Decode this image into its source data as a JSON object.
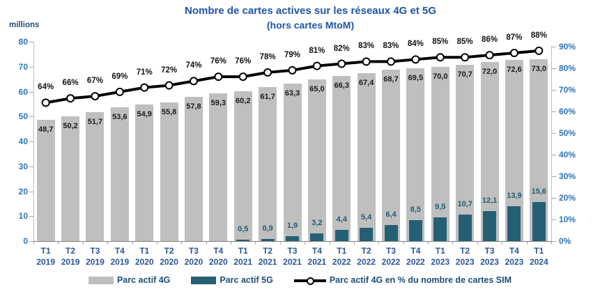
{
  "title": {
    "line1": "Nombre de cartes actives sur les réseaux 4G et 5G",
    "line2": "(hors cartes MtoM)"
  },
  "colors": {
    "title_text": "#1f55a4",
    "axis_tick_text": "#2e74b5",
    "x_tick_text": "#2a5599",
    "unit_label_text": "#1f4e79",
    "legend_text": "#1f4e79",
    "bar_4g": "#bfbfbf",
    "bar_5g": "#255f74",
    "label_4g_text": "#1a1a1a",
    "label_5g_text": "#1f5b74",
    "pct_label_text": "#111111",
    "line_series": "#000000",
    "marker_fill": "#ffffff"
  },
  "chart_data": {
    "type": "bar",
    "title": "Nombre de cartes actives sur les réseaux 4G et 5G (hors cartes MtoM)",
    "unit_label": "millions",
    "categories": [
      {
        "q": "T1",
        "year": "2019"
      },
      {
        "q": "T2",
        "year": "2019"
      },
      {
        "q": "T3",
        "year": "2019"
      },
      {
        "q": "T4",
        "year": "2019"
      },
      {
        "q": "T1",
        "year": "2020"
      },
      {
        "q": "T2",
        "year": "2020"
      },
      {
        "q": "T3",
        "year": "2020"
      },
      {
        "q": "T4",
        "year": "2020"
      },
      {
        "q": "T1",
        "year": "2021"
      },
      {
        "q": "T2",
        "year": "2021"
      },
      {
        "q": "T3",
        "year": "2021"
      },
      {
        "q": "T4",
        "year": "2021"
      },
      {
        "q": "T1",
        "year": "2022"
      },
      {
        "q": "T2",
        "year": "2022"
      },
      {
        "q": "T3",
        "year": "2022"
      },
      {
        "q": "T4",
        "year": "2022"
      },
      {
        "q": "T1",
        "year": "2023"
      },
      {
        "q": "T2",
        "year": "2023"
      },
      {
        "q": "T3",
        "year": "2023"
      },
      {
        "q": "T4",
        "year": "2023"
      },
      {
        "q": "T1",
        "year": "2024"
      }
    ],
    "series": [
      {
        "name": "Parc actif 4G",
        "type": "bar",
        "values": [
          48.7,
          50.2,
          51.7,
          53.6,
          54.9,
          55.8,
          57.8,
          59.3,
          60.2,
          61.7,
          63.3,
          65.0,
          66.3,
          67.4,
          68.7,
          69.5,
          70.0,
          70.7,
          72.0,
          72.6,
          73.0
        ],
        "labels": [
          "48,7",
          "50,2",
          "51,7",
          "53,6",
          "54,9",
          "55,8",
          "57,8",
          "59,3",
          "60,2",
          "61,7",
          "63,3",
          "65,0",
          "66,3",
          "67,4",
          "68,7",
          "69,5",
          "70,0",
          "70,7",
          "72,0",
          "72,6",
          "73,0"
        ]
      },
      {
        "name": "Parc actif 5G",
        "type": "bar",
        "values": [
          null,
          null,
          null,
          null,
          null,
          null,
          null,
          null,
          0.5,
          0.9,
          1.9,
          3.2,
          4.4,
          5.4,
          6.4,
          8.5,
          9.5,
          10.7,
          12.1,
          13.9,
          15.6
        ],
        "labels": [
          null,
          null,
          null,
          null,
          null,
          null,
          null,
          null,
          "0,5",
          "0,9",
          "1,9",
          "3,2",
          "4,4",
          "5,4",
          "6,4",
          "8,5",
          "9,5",
          "10,7",
          "12,1",
          "13,9",
          "15,6"
        ]
      },
      {
        "name": "Parc actif 4G en % du nombre de cartes SIM",
        "type": "line",
        "values": [
          64,
          66,
          67,
          69,
          71,
          72,
          74,
          76,
          76,
          78,
          79,
          81,
          82,
          83,
          83,
          84,
          85,
          85,
          86,
          87,
          88
        ],
        "labels": [
          "64%",
          "66%",
          "67%",
          "69%",
          "71%",
          "72%",
          "74%",
          "76%",
          "76%",
          "78%",
          "79%",
          "81%",
          "82%",
          "83%",
          "83%",
          "84%",
          "85%",
          "85%",
          "86%",
          "87%",
          "88%"
        ]
      }
    ],
    "left_axis": {
      "min": 0,
      "max": 80,
      "step": 10,
      "ticks": [
        "80",
        "70",
        "60",
        "50",
        "40",
        "30",
        "20",
        "10",
        "0"
      ]
    },
    "right_axis": {
      "min": 0,
      "max": 90,
      "step": 10,
      "ticks": [
        "90%",
        "80%",
        "70%",
        "60%",
        "50%",
        "40%",
        "30%",
        "20%",
        "10%",
        "0%"
      ]
    },
    "grid": false,
    "legend_position": "bottom",
    "legend": [
      {
        "label": "Parc actif 4G",
        "swatch": "bar-gray"
      },
      {
        "label": "Parc actif 5G",
        "swatch": "bar-teal"
      },
      {
        "label": "Parc actif 4G en % du nombre de cartes SIM",
        "swatch": "line-marker"
      }
    ]
  }
}
